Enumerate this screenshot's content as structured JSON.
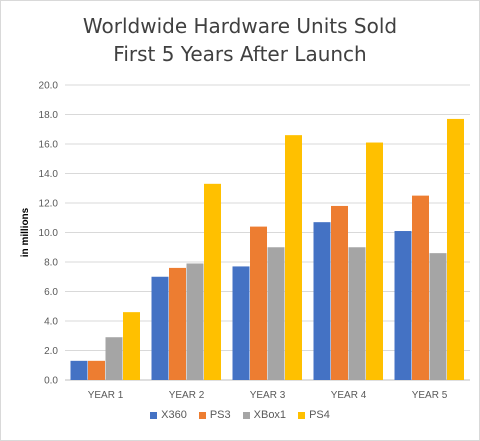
{
  "chart_data": {
    "type": "bar",
    "title_lines": [
      "Worldwide Hardware Units Sold",
      "First 5 Years After Launch"
    ],
    "ylabel": "in millions",
    "xlabel": "",
    "categories": [
      "YEAR 1",
      "YEAR 2",
      "YEAR 3",
      "YEAR 4",
      "YEAR 5"
    ],
    "ylim": [
      0,
      20
    ],
    "yticks": [
      "0.0",
      "2.0",
      "4.0",
      "6.0",
      "8.0",
      "10.0",
      "12.0",
      "14.0",
      "16.0",
      "18.0",
      "20.0"
    ],
    "grid": true,
    "legend_position": "bottom",
    "series": [
      {
        "name": "X360",
        "color": "#4472c4",
        "values": [
          1.3,
          7.0,
          7.7,
          10.7,
          10.1
        ]
      },
      {
        "name": "PS3",
        "color": "#ed7d31",
        "values": [
          1.3,
          7.6,
          10.4,
          11.8,
          12.5
        ]
      },
      {
        "name": "XBox1",
        "color": "#a5a5a5",
        "values": [
          2.9,
          7.9,
          9.0,
          9.0,
          8.6
        ]
      },
      {
        "name": "PS4",
        "color": "#ffc000",
        "values": [
          4.6,
          13.3,
          16.6,
          16.1,
          17.7
        ]
      }
    ]
  }
}
